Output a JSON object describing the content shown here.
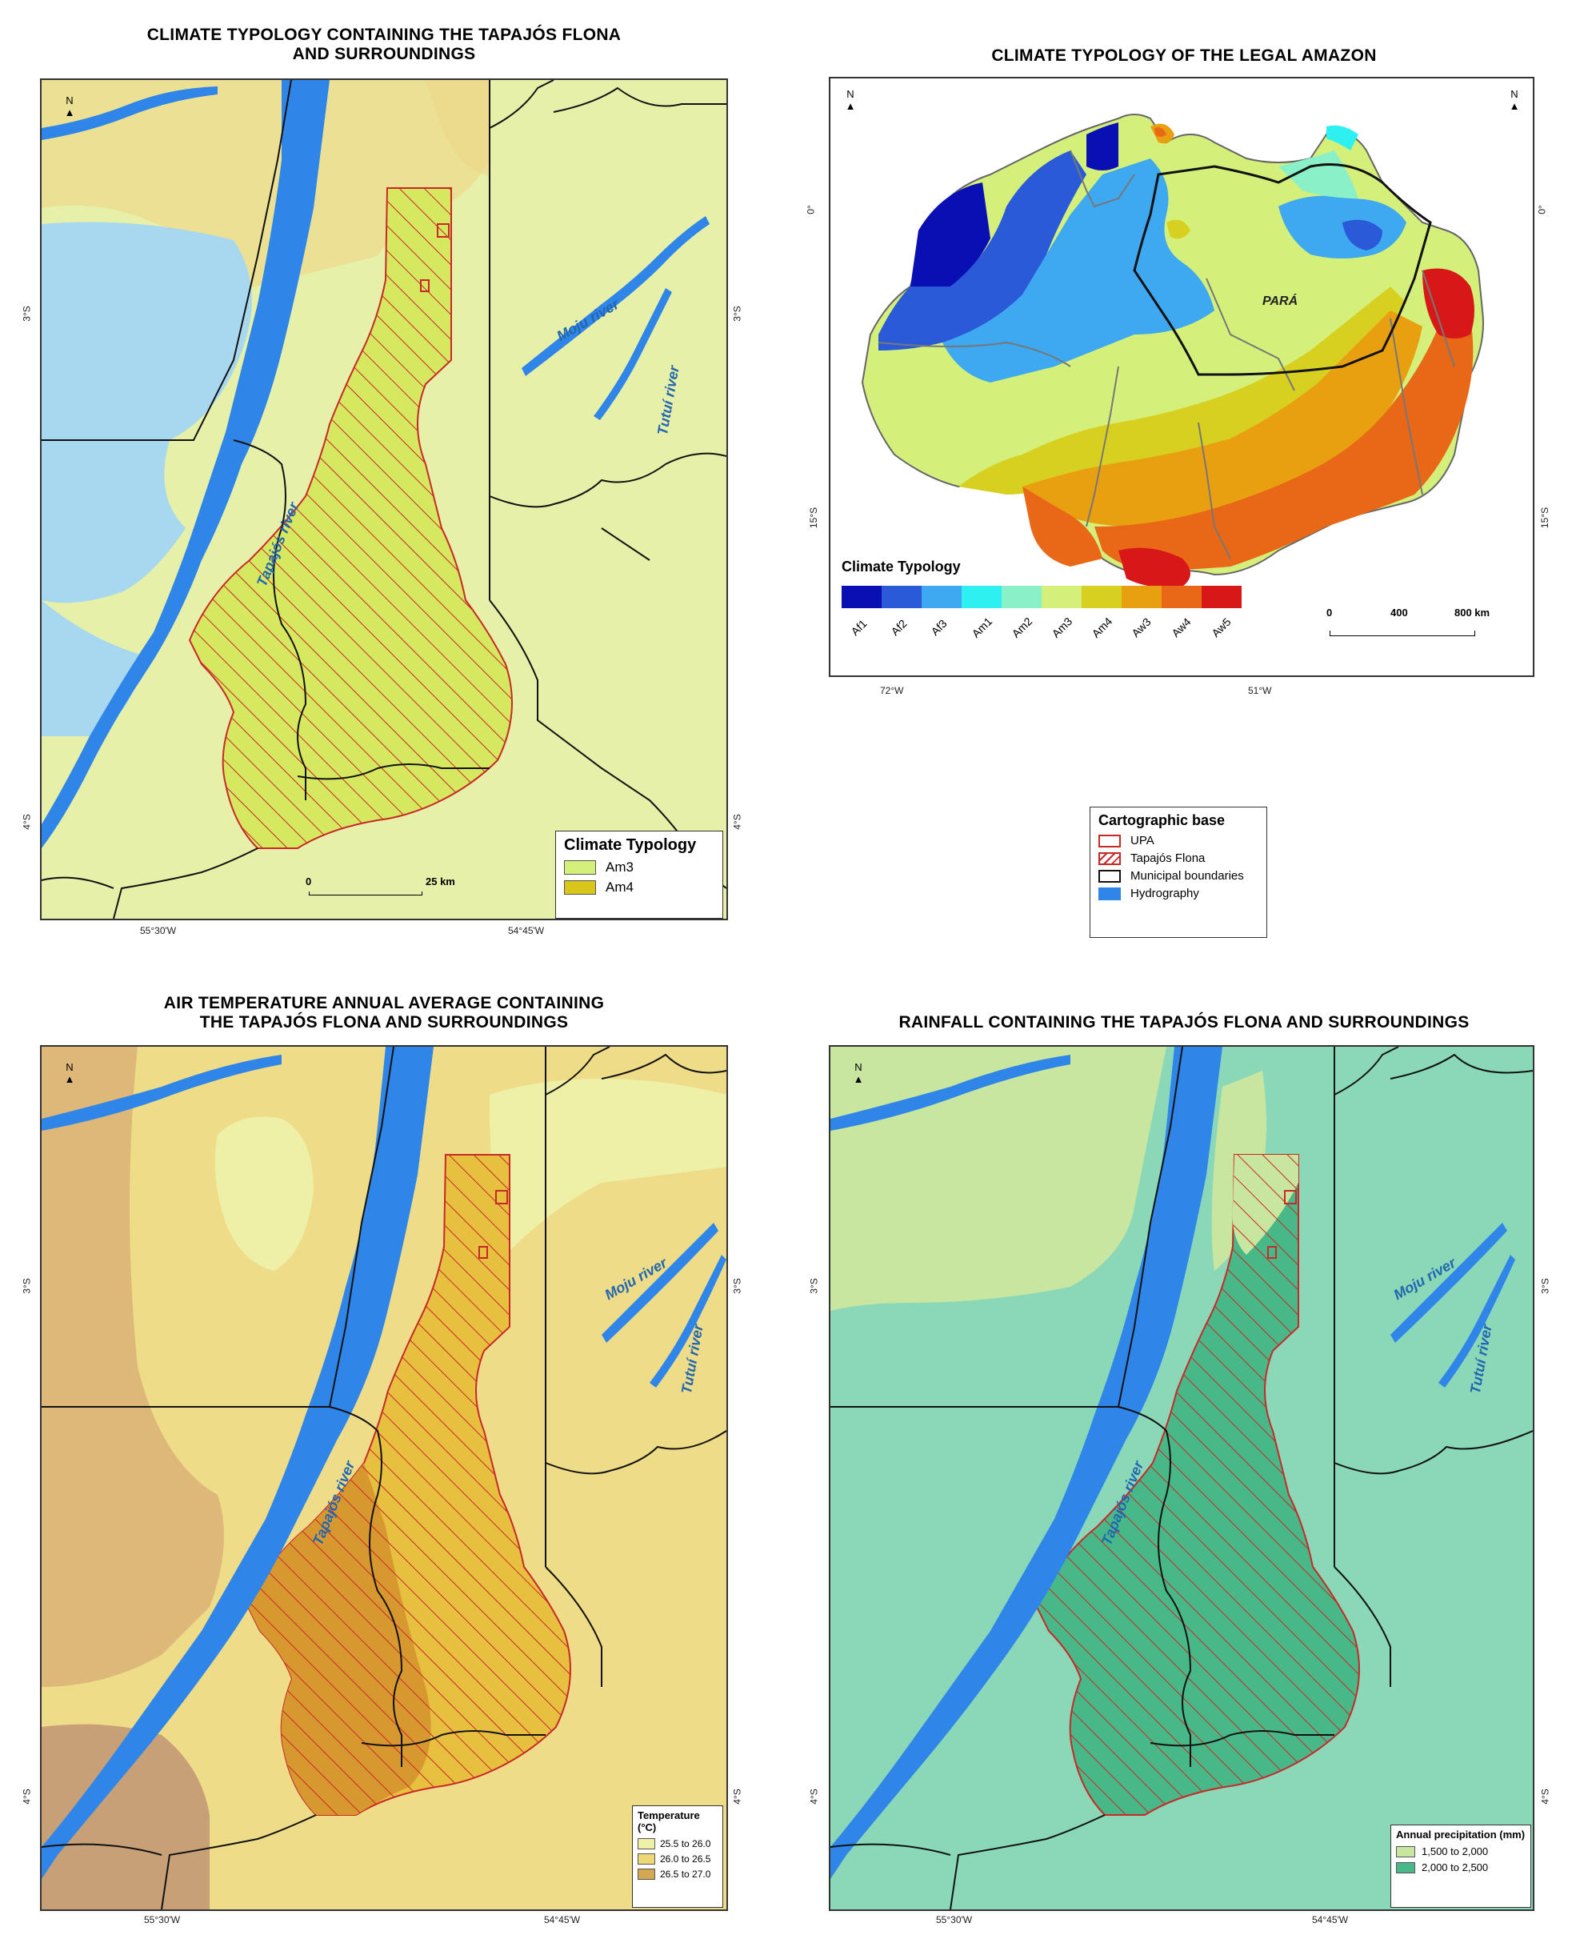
{
  "panels": {
    "topleft": {
      "title_line1": "CLIMATE TYPOLOGY CONTAINING THE TAPAJÓS FLONA",
      "title_line2": "AND SURROUNDINGS",
      "lat_top": "3°S",
      "lat_bottom": "4°S",
      "lon_left": "55°30'W",
      "lon_right": "54°45'W",
      "legend_title": "Climate Typology",
      "legend_items": [
        {
          "label": "Am3",
          "color": "#d4f07a"
        },
        {
          "label": "Am4",
          "color": "#d8c71a"
        }
      ],
      "scale_zero": "0",
      "scale_max": "25 km",
      "river_tapajos": "Tapajós river",
      "river_moju": "Moju river",
      "river_tutui": "Tutuí river"
    },
    "topright": {
      "title": "CLIMATE TYPOLOGY OF THE LEGAL AMAZON",
      "lat_top": "0°",
      "lat_bottom": "15°S",
      "lon_left": "72°W",
      "lon_right": "51°W",
      "state_label": "PARÁ",
      "legend_title": "Climate Typology",
      "classes": [
        {
          "label": "Af1",
          "color": "#0a0fb3"
        },
        {
          "label": "Af2",
          "color": "#2a5ad8"
        },
        {
          "label": "Af3",
          "color": "#3ea8f0"
        },
        {
          "label": "Am1",
          "color": "#2ef0f0"
        },
        {
          "label": "Am2",
          "color": "#8af0c8"
        },
        {
          "label": "Am3",
          "color": "#d4f07a"
        },
        {
          "label": "Am4",
          "color": "#d8d020"
        },
        {
          "label": "Aw3",
          "color": "#e8a010"
        },
        {
          "label": "Aw4",
          "color": "#e86818"
        },
        {
          "label": "Aw5",
          "color": "#d81818"
        }
      ],
      "scale_labels": [
        "0",
        "400",
        "800 km"
      ]
    },
    "cartographic_base": {
      "title": "Cartographic base",
      "items": [
        {
          "label": "UPA"
        },
        {
          "label": "Tapajós Flona"
        },
        {
          "label": "Municipal boundaries"
        },
        {
          "label": "Hydrography"
        }
      ]
    },
    "bottomleft": {
      "title_line1": "AIR TEMPERATURE ANNUAL AVERAGE CONTAINING",
      "title_line2": "THE TAPAJÓS FLONA AND SURROUNDINGS",
      "lat_top": "3°S",
      "lat_bottom": "4°S",
      "lon_left": "55°30'W",
      "lon_right": "54°45'W",
      "legend_title": "Temperature (°C)",
      "legend_items": [
        {
          "label": "25.5 to 26.0",
          "color": "#eef0a8"
        },
        {
          "label": "26.0 to 26.5",
          "color": "#ecd876"
        },
        {
          "label": "26.5 to 27.0",
          "color": "#d4a850"
        }
      ],
      "river_tapajos": "Tapajós river",
      "river_moju": "Moju river",
      "river_tutui": "Tutuí river"
    },
    "bottomright": {
      "title": "RAINFALL CONTAINING THE TAPAJÓS FLONA AND SURROUNDINGS",
      "lat_top": "3°S",
      "lat_bottom": "4°S",
      "lon_left": "55°30'W",
      "lon_right": "54°45'W",
      "legend_title": "Annual precipitation (mm)",
      "legend_items": [
        {
          "label": "1,500 to 2,000",
          "color": "#c8e6a0"
        },
        {
          "label": "2,000 to 2,500",
          "color": "#48b888"
        }
      ],
      "river_tapajos": "Tapajós river",
      "river_moju": "Moju river",
      "river_tutui": "Tutuí river"
    }
  },
  "colors": {
    "river": "#2f86e8",
    "flona_hatch": "#c82828",
    "boundary": "#111111"
  }
}
